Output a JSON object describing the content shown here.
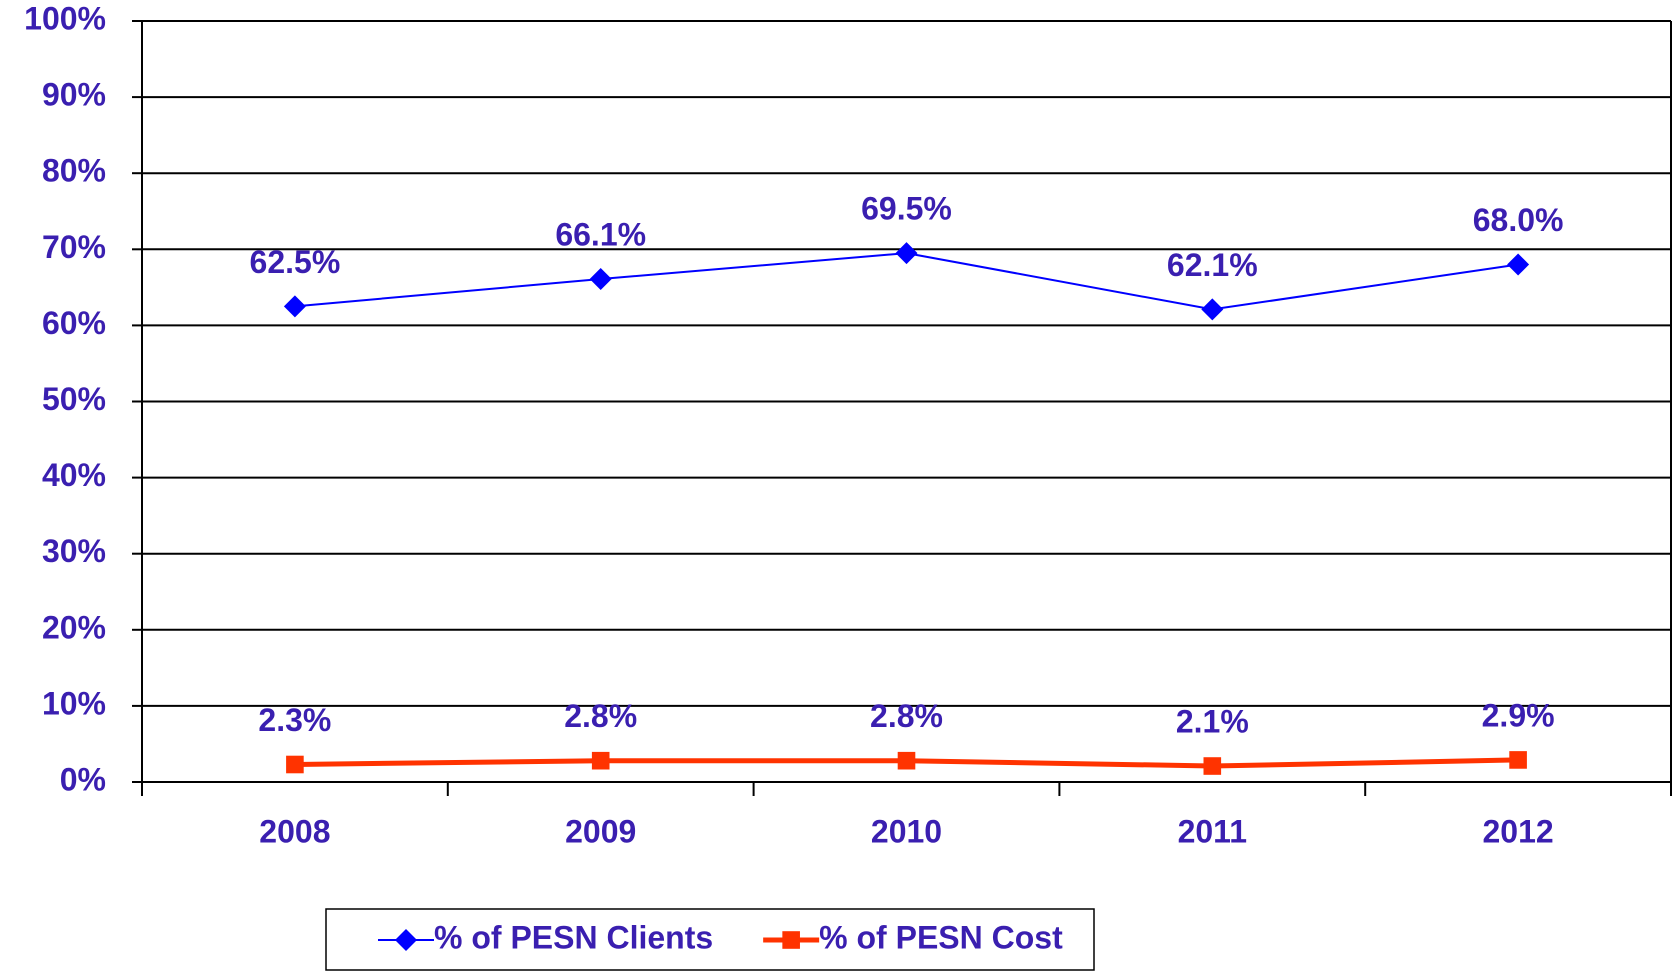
{
  "chart_data": {
    "type": "line",
    "categories": [
      "2008",
      "2009",
      "2010",
      "2011",
      "2012"
    ],
    "series": [
      {
        "name": "% of PESN Clients",
        "color": "#0000ff",
        "marker": "diamond",
        "values": [
          62.5,
          66.1,
          69.5,
          62.1,
          68.0
        ],
        "value_labels": [
          "62.5%",
          "66.1%",
          "69.5%",
          "62.1%",
          "68.0%"
        ]
      },
      {
        "name": "% of PESN Cost",
        "color": "#ff3300",
        "marker": "square",
        "values": [
          2.3,
          2.8,
          2.8,
          2.1,
          2.9
        ],
        "value_labels": [
          "2.3%",
          "2.8%",
          "2.8%",
          "2.1%",
          "2.9%"
        ]
      }
    ],
    "ylim": [
      0,
      100
    ],
    "yticks": [
      {
        "value": 0,
        "label": "0%"
      },
      {
        "value": 10,
        "label": "10%"
      },
      {
        "value": 20,
        "label": "20%"
      },
      {
        "value": 30,
        "label": "30%"
      },
      {
        "value": 40,
        "label": "40%"
      },
      {
        "value": 50,
        "label": "50%"
      },
      {
        "value": 60,
        "label": "60%"
      },
      {
        "value": 70,
        "label": "70%"
      },
      {
        "value": 80,
        "label": "80%"
      },
      {
        "value": 90,
        "label": "90%"
      },
      {
        "value": 100,
        "label": "100%"
      }
    ],
    "grid": true,
    "legend": "bottom"
  }
}
